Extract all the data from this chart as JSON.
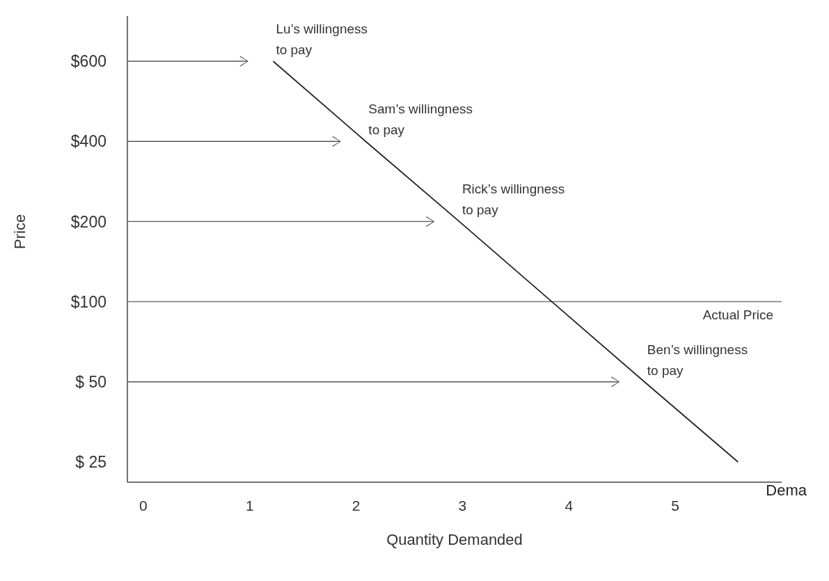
{
  "chart_data": {
    "type": "line",
    "orientation": "horizontal",
    "xlabel": "Quantity Demanded",
    "ylabel": "Price",
    "categories": [
      "$600",
      "$400",
      "$200",
      "$100",
      "$ 50",
      "$ 25"
    ],
    "xlim": [
      -0.15,
      6.0
    ],
    "xticks": [
      0,
      1,
      2,
      3,
      4,
      5
    ],
    "series": [
      {
        "name": "Dema",
        "color": "#222222",
        "values": [
          1.22,
          2.09,
          2.97,
          3.84,
          4.71,
          5.59
        ]
      }
    ],
    "ref_lines": [
      {
        "axis": "y",
        "value": "$100",
        "label": "Actual Price",
        "color": "#777777"
      }
    ],
    "annotations": [
      {
        "text": "Lu’s willingness\nto pay",
        "x": 1.22,
        "y": "$600"
      },
      {
        "text": "Sam’s willingness\nto pay",
        "x": 2.09,
        "y": "$400"
      },
      {
        "text": "Rick’s willingness\nto pay",
        "x": 2.97,
        "y": "$200"
      },
      {
        "text": "Ben’s willingness\nto pay",
        "x": 4.71,
        "y": "$ 50"
      }
    ]
  }
}
